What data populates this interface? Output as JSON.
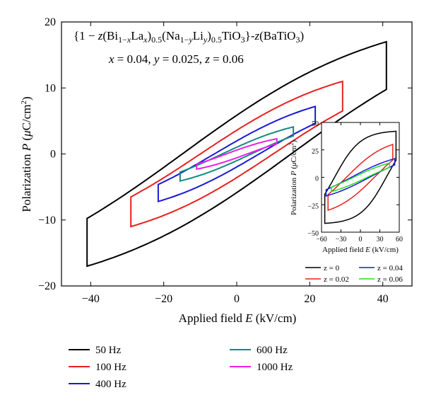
{
  "chart_data": [
    {
      "type": "line",
      "title_line1": "{1 − z(Bi1−xLax)0.5(Na1−yLiy)0.5TiO3}-z(BaTiO3)",
      "title_line2": "x = 0.04, y = 0.025, z = 0.06",
      "xlabel": "Applied field E (kV/cm)",
      "ylabel": "Polarization P (μC/cm²)",
      "xlim": [
        -48,
        48
      ],
      "ylim": [
        -20,
        20
      ],
      "xticks": [
        -40,
        -20,
        0,
        20,
        40
      ],
      "xtick_labels": [
        "−40",
        "−20",
        "0",
        "20",
        "40"
      ],
      "yticks": [
        -20,
        -10,
        0,
        10,
        20
      ],
      "ytick_labels": [
        "−20",
        "−10",
        "0",
        "10",
        "20"
      ],
      "legend_position": "below plot",
      "series": [
        {
          "name": "50 Hz",
          "color": "#000000",
          "emax": 41,
          "pmax": 17,
          "pr": 4.5
        },
        {
          "name": "100 Hz",
          "color": "#e8201f",
          "emax": 29,
          "pmax": 11,
          "pr": 2.7
        },
        {
          "name": "400 Hz",
          "color": "#1a1ad6",
          "emax": 21.5,
          "pmax": 7.2,
          "pr": 1.4
        },
        {
          "name": "600 Hz",
          "color": "#138a7e",
          "emax": 15.5,
          "pmax": 4.1,
          "pr": 0.7
        },
        {
          "name": "1000 Hz",
          "color": "#ec1fe6",
          "emax": 11,
          "pmax": 2.3,
          "pr": 0.4
        }
      ]
    },
    {
      "type": "line",
      "xlabel": "Applied field E (kV/cm)",
      "ylabel": "Polarization P (μC/cm²)",
      "xlim": [
        -60,
        60
      ],
      "ylim": [
        -50,
        50
      ],
      "xticks": [
        -60,
        -30,
        0,
        30,
        60
      ],
      "xtick_labels": [
        "−60",
        "−30",
        "0",
        "30",
        "60"
      ],
      "yticks": [
        -50,
        -25,
        0,
        25,
        50
      ],
      "ytick_labels": [
        "−50",
        "−25",
        "0",
        "25",
        "50"
      ],
      "legend_position": "below inset",
      "series": [
        {
          "name": "z = 0",
          "color": "#000000",
          "emax": 55,
          "pmax": 42,
          "pr": 32
        },
        {
          "name": "z = 0.02",
          "color": "#e8201f",
          "emax": 50,
          "pmax": 30,
          "pr": 10
        },
        {
          "name": "z = 0.04",
          "color": "#1a1ad6",
          "emax": 53,
          "pmax": 17,
          "pr": 3
        },
        {
          "name": "z = 0.06",
          "color": "#22dd22",
          "emax": 45,
          "pmax": 13,
          "pr": 2
        }
      ]
    }
  ]
}
